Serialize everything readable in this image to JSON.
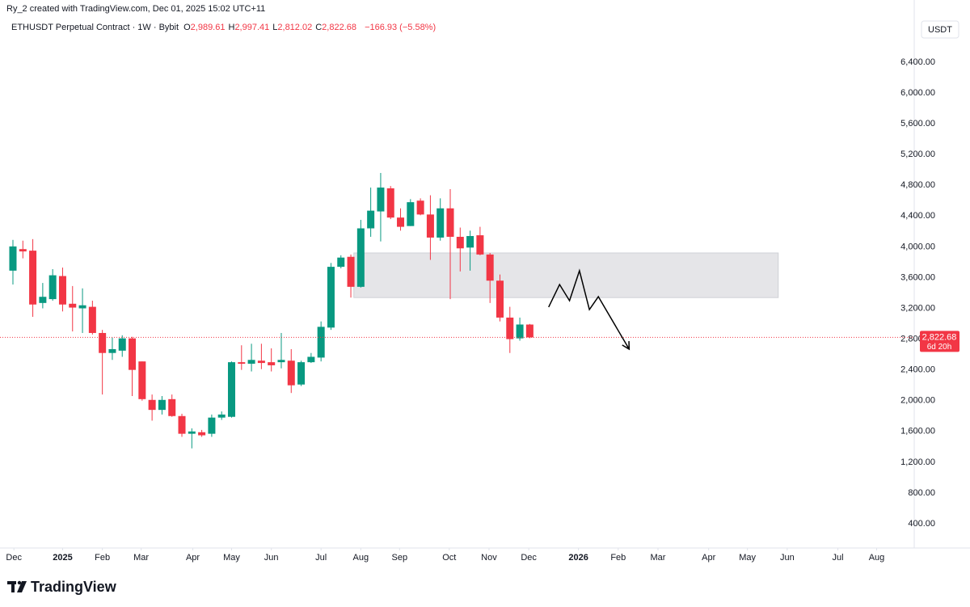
{
  "header": {
    "credit": "Ry_2 created with TradingView.com, Dec 01, 2025 15:02 UTC+11",
    "symbol": "ETHUSDT Perpetual Contract · 1W · Bybit",
    "ohlc_legend": [
      {
        "key": "O",
        "value": "2,989.61"
      },
      {
        "key": "H",
        "value": "2,997.41"
      },
      {
        "key": "L",
        "value": "2,812.02"
      },
      {
        "key": "C",
        "value": "2,822.68"
      }
    ],
    "change": "−166.93 (−5.58%)",
    "currency_button": "USDT",
    "logo": "TradingView"
  },
  "chart_data": {
    "type": "candlestick",
    "up_color": "#089981",
    "down_color": "#f23645",
    "x": [
      0,
      1,
      2,
      3,
      4,
      5,
      6,
      7,
      8,
      9,
      10,
      11,
      12,
      13,
      14,
      15,
      16,
      17,
      18,
      19,
      20,
      21,
      22,
      23,
      24,
      25,
      26,
      27,
      28,
      29,
      30,
      31,
      32,
      33,
      34,
      35,
      36,
      37,
      38,
      39,
      40,
      41,
      42,
      43,
      44,
      45,
      46,
      47,
      48,
      49,
      50,
      51,
      52
    ],
    "open": [
      3690,
      3970,
      3950,
      3270,
      3320,
      3620,
      3260,
      3200,
      3220,
      2880,
      2620,
      2650,
      2810,
      2510,
      2010,
      1880,
      2020,
      1800,
      1570,
      1590,
      1570,
      1780,
      1790,
      2500,
      2480,
      2520,
      2500,
      2500,
      2520,
      2210,
      2500,
      2560,
      2950,
      3740,
      3870,
      3480,
      4240,
      4460,
      4760,
      4380,
      4270,
      4600,
      4420,
      4120,
      4500,
      4130,
      3990,
      4150,
      3900,
      3560,
      3080,
      2810,
      2989.61
    ],
    "high": [
      4090,
      4080,
      4100,
      3530,
      3710,
      3730,
      3490,
      3460,
      3300,
      2920,
      2820,
      2850,
      2830,
      2510,
      2080,
      2060,
      2080,
      1830,
      1640,
      1620,
      1820,
      1860,
      2510,
      2720,
      2740,
      2740,
      2680,
      2880,
      2670,
      2520,
      2620,
      3030,
      3790,
      3890,
      3900,
      4350,
      4770,
      4960,
      4790,
      4500,
      4620,
      4630,
      4670,
      4630,
      4750,
      4250,
      4210,
      4260,
      3920,
      3640,
      3220,
      3080,
      2997.41
    ],
    "low": [
      3510,
      3850,
      3090,
      3200,
      3300,
      3160,
      2900,
      2880,
      2860,
      2080,
      2530,
      2570,
      2060,
      2000,
      1740,
      1820,
      1790,
      1530,
      1380,
      1530,
      1530,
      1750,
      1780,
      2400,
      2380,
      2410,
      2380,
      2420,
      2100,
      2190,
      2490,
      2510,
      2920,
      3720,
      3340,
      3470,
      4130,
      4070,
      4360,
      4210,
      4270,
      4410,
      3830,
      4080,
      3320,
      3680,
      3690,
      3890,
      3270,
      3030,
      2620,
      2780,
      2812.02
    ],
    "close": [
      4005,
      3940,
      3250,
      3350,
      3630,
      3250,
      3210,
      3240,
      2880,
      2620,
      2670,
      2810,
      2400,
      2020,
      1880,
      2010,
      1800,
      1570,
      1600,
      1550,
      1780,
      1820,
      2500,
      2480,
      2530,
      2490,
      2460,
      2530,
      2200,
      2500,
      2570,
      2960,
      3740,
      3860,
      3480,
      4240,
      4470,
      4770,
      4380,
      4260,
      4580,
      4420,
      4120,
      4500,
      4130,
      3980,
      4140,
      3900,
      3560,
      3080,
      2800,
      2990,
      2822.68
    ],
    "xlim": [
      -1.3,
      90.6
    ],
    "xticks": [
      {
        "value": 0.1,
        "label": "Dec"
      },
      {
        "value": 5,
        "label": "2025"
      },
      {
        "value": 9,
        "label": "Feb"
      },
      {
        "value": 12.9,
        "label": "Mar"
      },
      {
        "value": 18.1,
        "label": "Apr"
      },
      {
        "value": 22,
        "label": "May"
      },
      {
        "value": 26,
        "label": "Jun"
      },
      {
        "value": 31,
        "label": "Jul"
      },
      {
        "value": 35,
        "label": "Aug"
      },
      {
        "value": 38.9,
        "label": "Sep"
      },
      {
        "value": 43.9,
        "label": "Oct"
      },
      {
        "value": 47.9,
        "label": "Nov"
      },
      {
        "value": 51.9,
        "label": "Dec"
      },
      {
        "value": 56.9,
        "label": "2026"
      },
      {
        "value": 60.9,
        "label": "Feb"
      },
      {
        "value": 64.9,
        "label": "Mar"
      },
      {
        "value": 70,
        "label": "Apr"
      },
      {
        "value": 73.9,
        "label": "May"
      },
      {
        "value": 77.9,
        "label": "Jun"
      },
      {
        "value": 83,
        "label": "Jul"
      },
      {
        "value": 86.9,
        "label": "Aug"
      }
    ],
    "ylim": [
      85,
      6998
    ],
    "yticks": [
      {
        "value": 400,
        "label": "400.00"
      },
      {
        "value": 800,
        "label": "800.00"
      },
      {
        "value": 1200,
        "label": "1,200.00"
      },
      {
        "value": 1600,
        "label": "1,600.00"
      },
      {
        "value": 2000,
        "label": "2,000.00"
      },
      {
        "value": 2400,
        "label": "2,400.00"
      },
      {
        "value": 2800,
        "label": "2,800.00"
      },
      {
        "value": 3200,
        "label": "3,200.00"
      },
      {
        "value": 3600,
        "label": "3,600.00"
      },
      {
        "value": 4000,
        "label": "4,000.00"
      },
      {
        "value": 4400,
        "label": "4,400.00"
      },
      {
        "value": 4800,
        "label": "4,800.00"
      },
      {
        "value": 5200,
        "label": "5,200.00"
      },
      {
        "value": 5600,
        "label": "5,600.00"
      },
      {
        "value": 6000,
        "label": "6,000.00"
      },
      {
        "value": 6400,
        "label": "6,400.00"
      }
    ],
    "last_price": {
      "value": 2822.68,
      "label": "2,822.68",
      "countdown": "6d 20h"
    },
    "zone": {
      "low": 3340,
      "high": 3920,
      "start": 34.3,
      "end": 77,
      "color": "#e0e1e4"
    },
    "projection": {
      "x": [
        53.9,
        55,
        56,
        57,
        58,
        58.9,
        62
      ],
      "y": [
        3216,
        3510,
        3300,
        3689,
        3184,
        3352,
        2669
      ],
      "color": "#000000"
    }
  }
}
